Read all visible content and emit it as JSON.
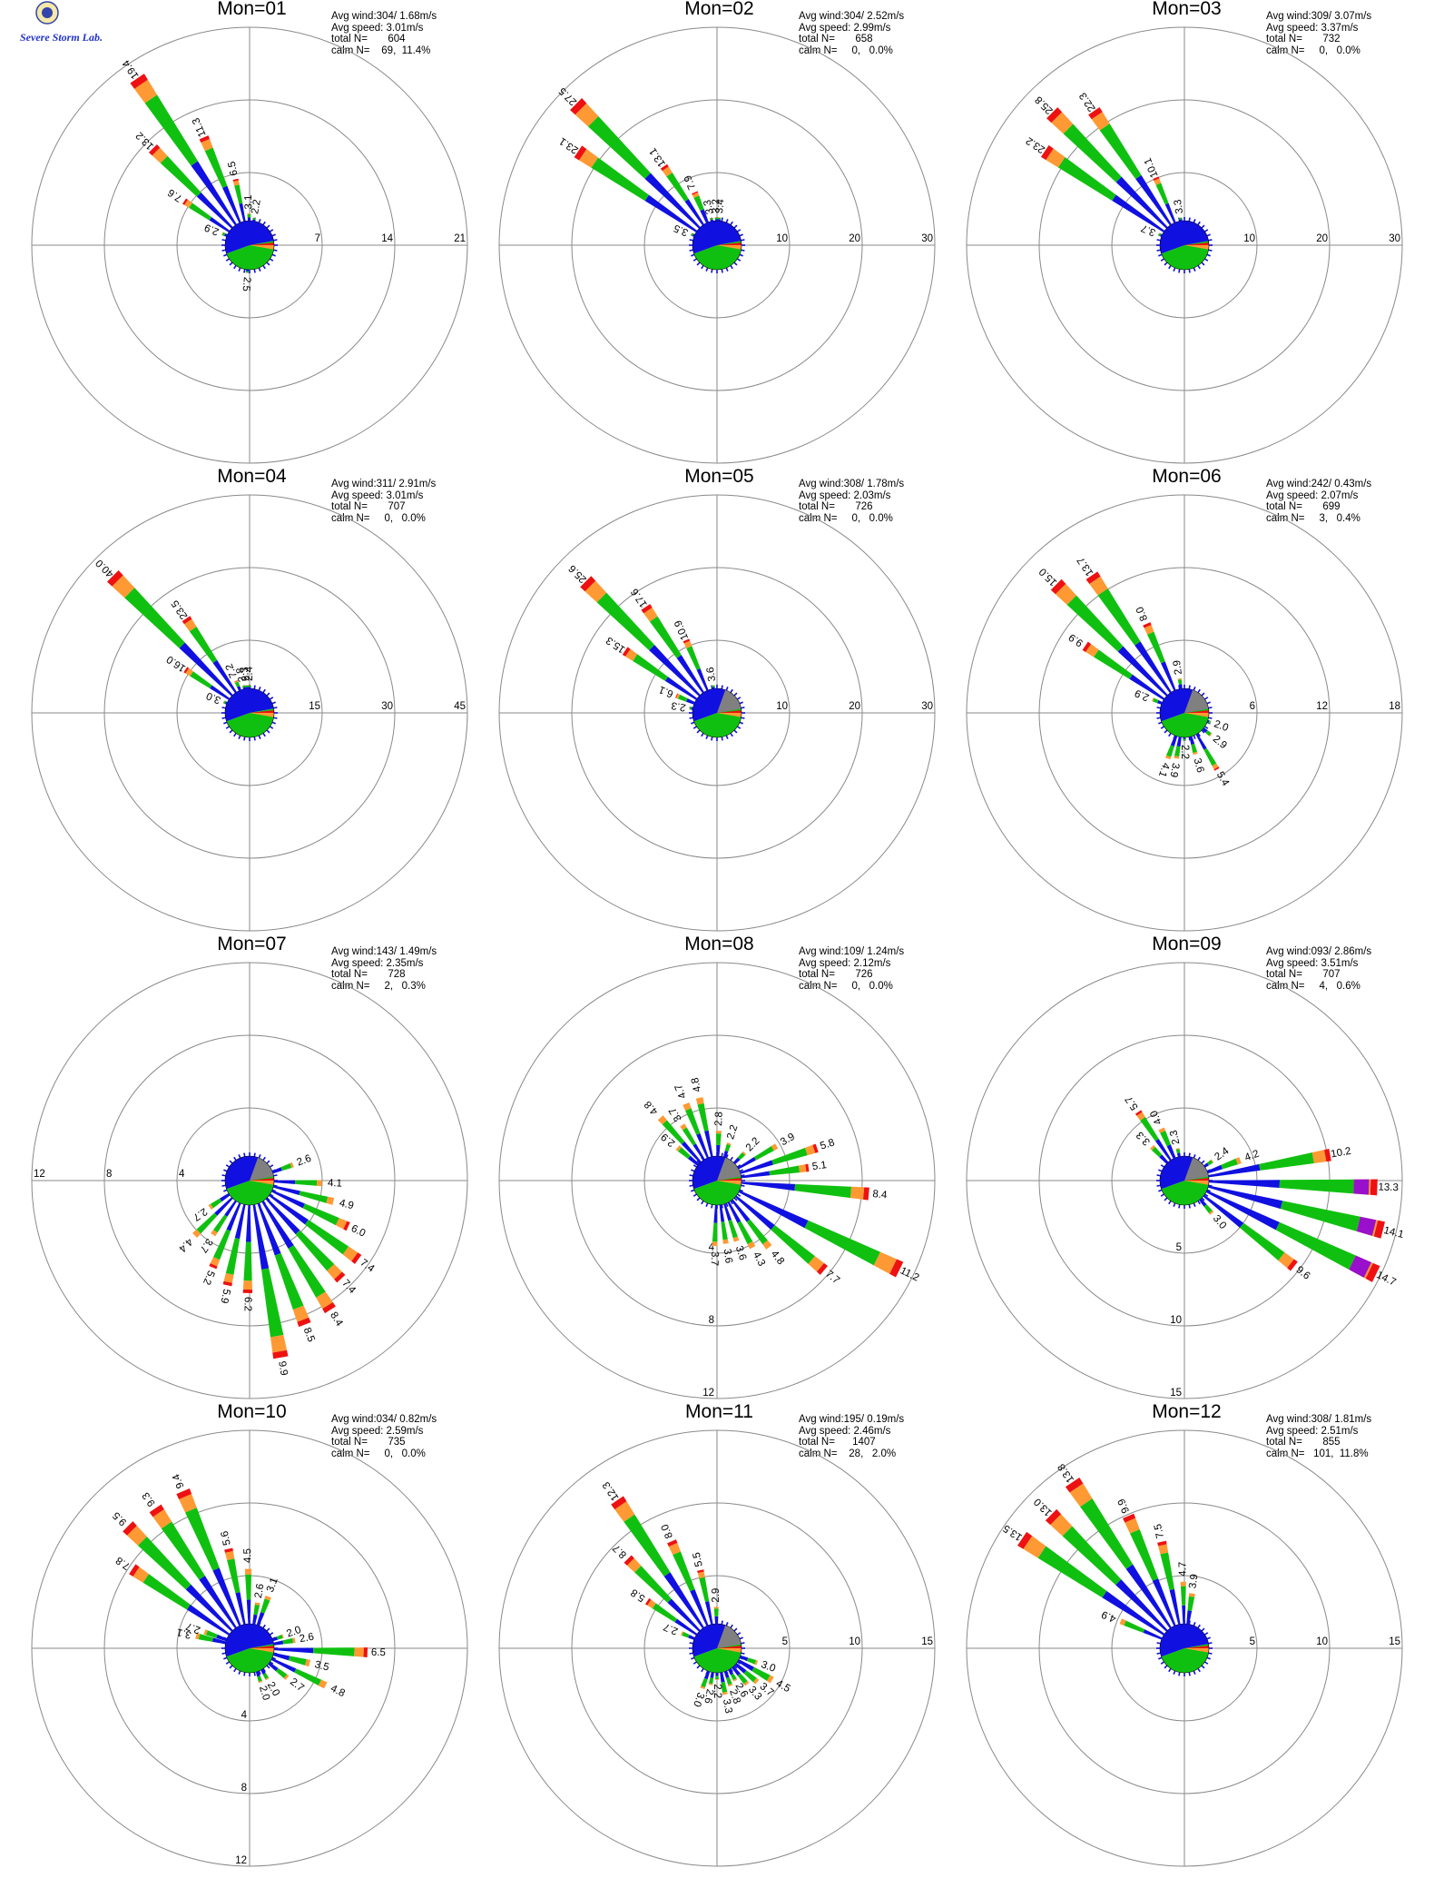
{
  "logo": {
    "text": "Severe Storm Lab.",
    "icon": "lab-logo-icon"
  },
  "colors": {
    "blue": "#1010e0",
    "green": "#10c010",
    "orange": "#ff9933",
    "red": "#ee1111",
    "purple": "#9910cc",
    "gray": "#808080"
  },
  "chart_data": [
    {
      "type": "windrose",
      "title": "Mon=01",
      "stats": {
        "avg_wind": "Avg wind:304/ 1.68m/s",
        "avg_speed": "Avg speed: 3.01m/s",
        "total_n": "total N=       604",
        "calm_n": "calm N=    69,  11.4%"
      },
      "rings": [
        7,
        14,
        21
      ],
      "ring_labels": [
        "7",
        "14",
        "21"
      ],
      "petals": [
        {
          "dir": 293,
          "value": 2.9
        },
        {
          "dir": 304,
          "value": 7.6
        },
        {
          "dir": 315,
          "value": 13.2
        },
        {
          "dir": 326,
          "value": 19.4
        },
        {
          "dir": 337,
          "value": 11.3
        },
        {
          "dir": 348,
          "value": 6.5
        },
        {
          "dir": 359,
          "value": 3.1
        },
        {
          "dir": 10,
          "value": 2.2
        },
        {
          "dir": 185,
          "value": 2.5
        }
      ]
    },
    {
      "type": "windrose",
      "title": "Mon=02",
      "stats": {
        "avg_wind": "Avg wind:304/ 2.52m/s",
        "avg_speed": "Avg speed: 2.99m/s",
        "total_n": "total N=       658",
        "calm_n": "calm N=     0,   0.0%"
      },
      "rings": [
        10,
        20,
        30
      ],
      "ring_labels": [
        "10",
        "20",
        "30"
      ],
      "petals": [
        {
          "dir": 293,
          "value": 3.5
        },
        {
          "dir": 304,
          "value": 23.1
        },
        {
          "dir": 315,
          "value": 27.5
        },
        {
          "dir": 326,
          "value": 13.1
        },
        {
          "dir": 337,
          "value": 7.9
        },
        {
          "dir": 348,
          "value": 3.3
        },
        {
          "dir": 359,
          "value": 3.2
        },
        {
          "dir": 5,
          "value": 3.4
        }
      ]
    },
    {
      "type": "windrose",
      "title": "Mon=03",
      "stats": {
        "avg_wind": "Avg wind:309/ 3.07m/s",
        "avg_speed": "Avg speed: 3.37m/s",
        "total_n": "total N=       732",
        "calm_n": "calm N=     0,   0.0%"
      },
      "rings": [
        10,
        20,
        30
      ],
      "ring_labels": [
        "10",
        "20",
        "30"
      ],
      "petals": [
        {
          "dir": 293,
          "value": 3.7
        },
        {
          "dir": 304,
          "value": 23.2
        },
        {
          "dir": 315,
          "value": 25.8
        },
        {
          "dir": 326,
          "value": 22.3
        },
        {
          "dir": 337,
          "value": 10.1
        },
        {
          "dir": 352,
          "value": 3.3
        }
      ]
    },
    {
      "type": "windrose",
      "title": "Mon=04",
      "stats": {
        "avg_wind": "Avg wind:311/ 2.91m/s",
        "avg_speed": "Avg speed: 3.01m/s",
        "total_n": "total N=       707",
        "calm_n": "calm N=     0,   0.0%"
      },
      "rings": [
        15,
        30,
        45
      ],
      "ring_labels": [
        "15",
        "30",
        "45"
      ],
      "petals": [
        {
          "dir": 293,
          "value": 3.0
        },
        {
          "dir": 304,
          "value": 16.0
        },
        {
          "dir": 315,
          "value": 40.0
        },
        {
          "dir": 326,
          "value": 23.5
        },
        {
          "dir": 337,
          "value": 7.2
        },
        {
          "dir": 348,
          "value": 2.8
        },
        {
          "dir": 354,
          "value": 2.3
        },
        {
          "dir": 0,
          "value": 2.4
        }
      ]
    },
    {
      "type": "windrose",
      "title": "Mon=05",
      "stats": {
        "avg_wind": "Avg wind:308/ 1.78m/s",
        "avg_speed": "Avg speed: 2.03m/s",
        "total_n": "total N=       726",
        "calm_n": "calm N=     0,   0.0%"
      },
      "rings": [
        10,
        20,
        30
      ],
      "ring_labels": [
        "10",
        "20",
        "30"
      ],
      "petals": [
        {
          "dir": 280,
          "value": 2.3
        },
        {
          "dir": 293,
          "value": 6.1
        },
        {
          "dir": 304,
          "value": 15.3
        },
        {
          "dir": 315,
          "value": 25.6
        },
        {
          "dir": 326,
          "value": 17.6
        },
        {
          "dir": 337,
          "value": 10.9
        },
        {
          "dir": 352,
          "value": 3.6
        }
      ]
    },
    {
      "type": "windrose",
      "title": "Mon=06",
      "stats": {
        "avg_wind": "Avg wind:242/ 0.43m/s",
        "avg_speed": "Avg speed: 2.07m/s",
        "total_n": "total N=       699",
        "calm_n": "calm N=     3,   0.4%"
      },
      "rings": [
        6,
        12,
        18
      ],
      "ring_labels": [
        "6",
        "12",
        "18"
      ],
      "petals": [
        {
          "dir": 293,
          "value": 2.9
        },
        {
          "dir": 304,
          "value": 9.9
        },
        {
          "dir": 315,
          "value": 15.0
        },
        {
          "dir": 326,
          "value": 13.7
        },
        {
          "dir": 337,
          "value": 8.0
        },
        {
          "dir": 352,
          "value": 2.9
        },
        {
          "dir": 110,
          "value": 2.0
        },
        {
          "dir": 130,
          "value": 2.9
        },
        {
          "dir": 150,
          "value": 5.4
        },
        {
          "dir": 165,
          "value": 3.6
        },
        {
          "dir": 180,
          "value": 2.2
        },
        {
          "dir": 190,
          "value": 3.9
        },
        {
          "dir": 200,
          "value": 4.1
        }
      ]
    },
    {
      "type": "windrose",
      "title": "Mon=07",
      "stats": {
        "avg_wind": "Avg wind:143/ 1.49m/s",
        "avg_speed": "Avg speed: 2.35m/s",
        "total_n": "total N=       728",
        "calm_n": "calm N=     2,   0.3%"
      },
      "rings": [
        4,
        8,
        12
      ],
      "ring_labels": [
        "4",
        "8",
        "12"
      ],
      "ring_label_side": "left",
      "petals": [
        {
          "dir": 70,
          "value": 2.6
        },
        {
          "dir": 92,
          "value": 4.1
        },
        {
          "dir": 104,
          "value": 4.9
        },
        {
          "dir": 115,
          "value": 6.0
        },
        {
          "dir": 126,
          "value": 7.4
        },
        {
          "dir": 137,
          "value": 7.4
        },
        {
          "dir": 148,
          "value": 8.4
        },
        {
          "dir": 159,
          "value": 8.5
        },
        {
          "dir": 170,
          "value": 9.9
        },
        {
          "dir": 181,
          "value": 6.2
        },
        {
          "dir": 192,
          "value": 5.9
        },
        {
          "dir": 203,
          "value": 5.2
        },
        {
          "dir": 214,
          "value": 3.7
        },
        {
          "dir": 225,
          "value": 4.4
        },
        {
          "dir": 236,
          "value": 2.7
        }
      ]
    },
    {
      "type": "windrose",
      "title": "Mon=08",
      "stats": {
        "avg_wind": "Avg wind:109/ 1.24m/s",
        "avg_speed": "Avg speed: 2.12m/s",
        "total_n": "total N=       726",
        "calm_n": "calm N=     0,   0.0%"
      },
      "rings": [
        4,
        8,
        12
      ],
      "ring_labels": [
        "4",
        "8",
        "12"
      ],
      "ring_label_side": "bottom",
      "petals": [
        {
          "dir": 310,
          "value": 2.9
        },
        {
          "dir": 318,
          "value": 4.8
        },
        {
          "dir": 328,
          "value": 3.7
        },
        {
          "dir": 338,
          "value": 4.7
        },
        {
          "dir": 348,
          "value": 4.8
        },
        {
          "dir": 2,
          "value": 2.8
        },
        {
          "dir": 18,
          "value": 2.2
        },
        {
          "dir": 45,
          "value": 2.2
        },
        {
          "dir": 60,
          "value": 3.9
        },
        {
          "dir": 72,
          "value": 5.8
        },
        {
          "dir": 82,
          "value": 5.1
        },
        {
          "dir": 95,
          "value": 8.4
        },
        {
          "dir": 116,
          "value": 11.2
        },
        {
          "dir": 130,
          "value": 7.7
        },
        {
          "dir": 142,
          "value": 4.8
        },
        {
          "dir": 152,
          "value": 4.3
        },
        {
          "dir": 162,
          "value": 3.6
        },
        {
          "dir": 172,
          "value": 3.6
        },
        {
          "dir": 182,
          "value": 3.7
        }
      ]
    },
    {
      "type": "windrose",
      "title": "Mon=09",
      "stats": {
        "avg_wind": "Avg wind:093/ 2.86m/s",
        "avg_speed": "Avg speed: 3.51m/s",
        "total_n": "total N=       707",
        "calm_n": "calm N=     4,   0.6%"
      },
      "rings": [
        5,
        10,
        15
      ],
      "ring_labels": [
        "5",
        "10",
        "15"
      ],
      "ring_label_side": "bottom",
      "petals": [
        {
          "dir": 316,
          "value": 3.3
        },
        {
          "dir": 326,
          "value": 5.7
        },
        {
          "dir": 336,
          "value": 4.0
        },
        {
          "dir": 348,
          "value": 2.3
        },
        {
          "dir": 55,
          "value": 2.4
        },
        {
          "dir": 70,
          "value": 4.2
        },
        {
          "dir": 80,
          "value": 10.2
        },
        {
          "dir": 92,
          "value": 13.3
        },
        {
          "dir": 104,
          "value": 14.1
        },
        {
          "dir": 116,
          "value": 14.7
        },
        {
          "dir": 128,
          "value": 9.6
        },
        {
          "dir": 140,
          "value": 3.0
        }
      ]
    },
    {
      "type": "windrose",
      "title": "Mon=10",
      "stats": {
        "avg_wind": "Avg wind:034/ 0.82m/s",
        "avg_speed": "Avg speed: 2.59m/s",
        "total_n": "total N=       735",
        "calm_n": "calm N=     0,   0.0%"
      },
      "rings": [
        4,
        8,
        12
      ],
      "ring_labels": [
        "4",
        "8",
        "12"
      ],
      "ring_label_side": "bottom",
      "petals": [
        {
          "dir": 283,
          "value": 3.1
        },
        {
          "dir": 290,
          "value": 2.7
        },
        {
          "dir": 304,
          "value": 7.8
        },
        {
          "dir": 315,
          "value": 9.5
        },
        {
          "dir": 326,
          "value": 9.3
        },
        {
          "dir": 337,
          "value": 9.4
        },
        {
          "dir": 348,
          "value": 5.6
        },
        {
          "dir": 359,
          "value": 4.5
        },
        {
          "dir": 10,
          "value": 2.6
        },
        {
          "dir": 20,
          "value": 3.1
        },
        {
          "dir": 70,
          "value": 2.0
        },
        {
          "dir": 80,
          "value": 2.6
        },
        {
          "dir": 92,
          "value": 6.5
        },
        {
          "dir": 104,
          "value": 3.5
        },
        {
          "dir": 116,
          "value": 4.8
        },
        {
          "dir": 128,
          "value": 2.7
        },
        {
          "dir": 150,
          "value": 2.0
        },
        {
          "dir": 162,
          "value": 2.0
        }
      ]
    },
    {
      "type": "windrose",
      "title": "Mon=11",
      "stats": {
        "avg_wind": "Avg wind:195/ 0.19m/s",
        "avg_speed": "Avg speed: 2.46m/s",
        "total_n": "total N=      1407",
        "calm_n": "calm N=    28,   2.0%"
      },
      "rings": [
        5,
        10,
        15
      ],
      "ring_labels": [
        "5",
        "10",
        "15"
      ],
      "petals": [
        {
          "dir": 293,
          "value": 2.7
        },
        {
          "dir": 304,
          "value": 5.8
        },
        {
          "dir": 315,
          "value": 8.7
        },
        {
          "dir": 326,
          "value": 12.3
        },
        {
          "dir": 337,
          "value": 8.0
        },
        {
          "dir": 348,
          "value": 5.5
        },
        {
          "dir": 359,
          "value": 2.9
        },
        {
          "dir": 110,
          "value": 3.0
        },
        {
          "dir": 120,
          "value": 4.5
        },
        {
          "dir": 130,
          "value": 3.7
        },
        {
          "dir": 140,
          "value": 3.3
        },
        {
          "dir": 150,
          "value": 2.6
        },
        {
          "dir": 160,
          "value": 2.8
        },
        {
          "dir": 170,
          "value": 3.3
        },
        {
          "dir": 180,
          "value": 2.2
        },
        {
          "dir": 190,
          "value": 2.6
        },
        {
          "dir": 200,
          "value": 3.0
        }
      ]
    },
    {
      "type": "windrose",
      "title": "Mon=12",
      "stats": {
        "avg_wind": "Avg wind:308/ 1.81m/s",
        "avg_speed": "Avg speed: 2.51m/s",
        "total_n": "total N=       855",
        "calm_n": "calm N=   101,  11.8%"
      },
      "rings": [
        5,
        10,
        15
      ],
      "ring_labels": [
        "5",
        "10",
        "15"
      ],
      "petals": [
        {
          "dir": 293,
          "value": 4.9
        },
        {
          "dir": 304,
          "value": 13.5
        },
        {
          "dir": 315,
          "value": 13.0
        },
        {
          "dir": 326,
          "value": 13.8
        },
        {
          "dir": 337,
          "value": 9.9
        },
        {
          "dir": 348,
          "value": 7.5
        },
        {
          "dir": 359,
          "value": 4.7
        },
        {
          "dir": 8,
          "value": 3.9
        }
      ]
    }
  ]
}
